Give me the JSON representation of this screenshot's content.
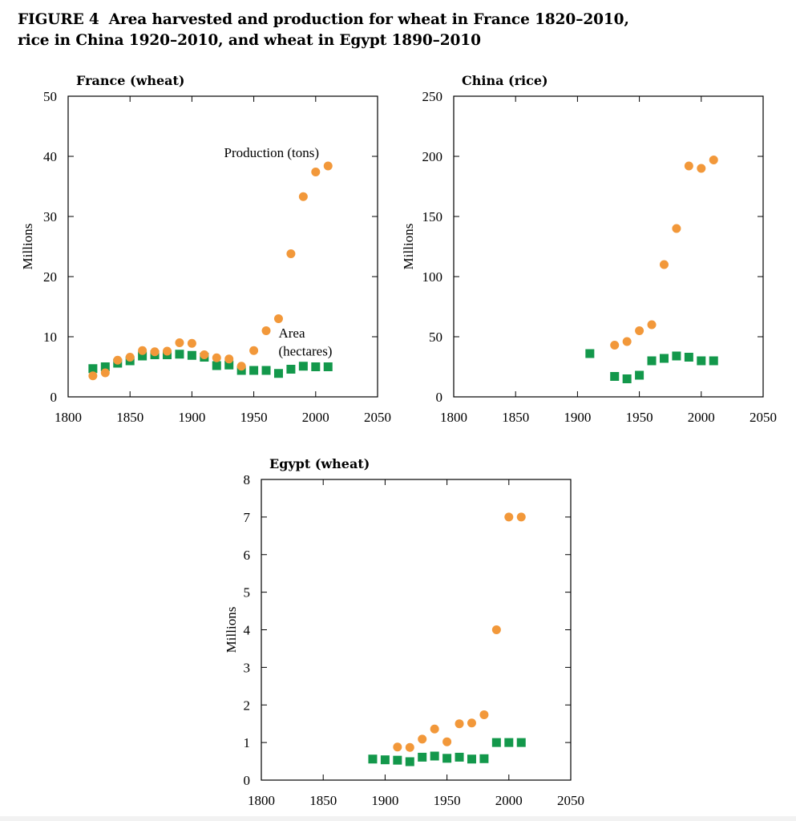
{
  "figure": {
    "label": "FIGURE 4",
    "title_line1": "Area harvested and production for wheat in France 1820–2010,",
    "title_line2": "rice in China 1920–2010, and wheat in Egypt 1890–2010"
  },
  "colors": {
    "production": "#f2983a",
    "area": "#13984b",
    "axis": "#000000"
  },
  "chart_data": [
    {
      "type": "scatter",
      "title": "France (wheat)",
      "ylabel": "Millions",
      "xlabel": "",
      "xlim": [
        1800,
        2050
      ],
      "ylim": [
        0,
        50
      ],
      "xticks": [
        1800,
        1850,
        1900,
        1950,
        2000,
        2050
      ],
      "yticks": [
        0,
        10,
        20,
        30,
        40,
        50
      ],
      "grid": false,
      "series": [
        {
          "name": "Production (tons)",
          "marker": "circle",
          "x": [
            1820,
            1830,
            1840,
            1850,
            1860,
            1870,
            1880,
            1890,
            1900,
            1910,
            1920,
            1930,
            1940,
            1950,
            1960,
            1970,
            1980,
            1990,
            2000,
            2010
          ],
          "values": [
            3.5,
            4.0,
            6.1,
            6.6,
            7.7,
            7.5,
            7.6,
            9.0,
            8.9,
            7.0,
            6.5,
            6.3,
            5.1,
            7.7,
            11.0,
            13.0,
            23.8,
            33.3,
            37.4,
            38.4
          ]
        },
        {
          "name": "Area (hectares)",
          "marker": "square",
          "x": [
            1820,
            1830,
            1840,
            1850,
            1860,
            1870,
            1880,
            1890,
            1900,
            1910,
            1920,
            1930,
            1940,
            1950,
            1960,
            1970,
            1980,
            1990,
            2000,
            2010
          ],
          "values": [
            4.7,
            5.0,
            5.6,
            6.0,
            6.8,
            7.0,
            7.0,
            7.1,
            6.9,
            6.6,
            5.2,
            5.3,
            4.4,
            4.4,
            4.4,
            3.9,
            4.6,
            5.1,
            5.0,
            5.0
          ]
        }
      ],
      "annotations": [
        {
          "text": "Production (tons)",
          "x": 1926,
          "y": 39.9
        },
        {
          "text": "Area",
          "x": 1970,
          "y": 9.9
        },
        {
          "text": "(hectares)",
          "x": 1970,
          "y": 6.9
        }
      ]
    },
    {
      "type": "scatter",
      "title": "China (rice)",
      "ylabel": "Millions",
      "xlabel": "",
      "xlim": [
        1800,
        2050
      ],
      "ylim": [
        0,
        250
      ],
      "xticks": [
        1800,
        1850,
        1900,
        1950,
        2000,
        2050
      ],
      "yticks": [
        0,
        50,
        100,
        150,
        200,
        250
      ],
      "grid": false,
      "series": [
        {
          "name": "",
          "marker": "circle",
          "x": [
            1930,
            1940,
            1950,
            1960,
            1970,
            1980,
            1990,
            2000,
            2010
          ],
          "values": [
            43,
            46,
            55,
            60,
            110,
            140,
            192,
            190,
            197
          ]
        },
        {
          "name": "",
          "marker": "square",
          "x": [
            1910,
            1930,
            1940,
            1950,
            1960,
            1970,
            1980,
            1990,
            2000,
            2010
          ],
          "values": [
            36,
            17,
            15,
            18,
            30,
            32,
            34,
            33,
            30,
            30
          ]
        }
      ],
      "annotations": []
    },
    {
      "type": "scatter",
      "title": "Egypt (wheat)",
      "ylabel": "Millions",
      "xlabel": "",
      "xlim": [
        1800,
        2050
      ],
      "ylim": [
        0,
        8
      ],
      "xticks": [
        1800,
        1850,
        1900,
        1950,
        2000,
        2050
      ],
      "yticks": [
        0,
        1,
        2,
        3,
        4,
        5,
        6,
        7,
        8
      ],
      "grid": false,
      "series": [
        {
          "name": "",
          "marker": "circle",
          "x": [
            1910,
            1920,
            1930,
            1940,
            1950,
            1960,
            1970,
            1980,
            1990,
            2000,
            2010
          ],
          "values": [
            0.88,
            0.87,
            1.09,
            1.36,
            1.02,
            1.5,
            1.52,
            1.74,
            4.0,
            7.0,
            7.0
          ]
        },
        {
          "name": "",
          "marker": "square",
          "x": [
            1890,
            1900,
            1910,
            1920,
            1930,
            1940,
            1950,
            1960,
            1970,
            1980,
            1990,
            2000,
            2010
          ],
          "values": [
            0.56,
            0.54,
            0.53,
            0.49,
            0.61,
            0.64,
            0.58,
            0.61,
            0.56,
            0.57,
            1.0,
            1.0,
            1.0
          ]
        }
      ],
      "annotations": []
    }
  ]
}
